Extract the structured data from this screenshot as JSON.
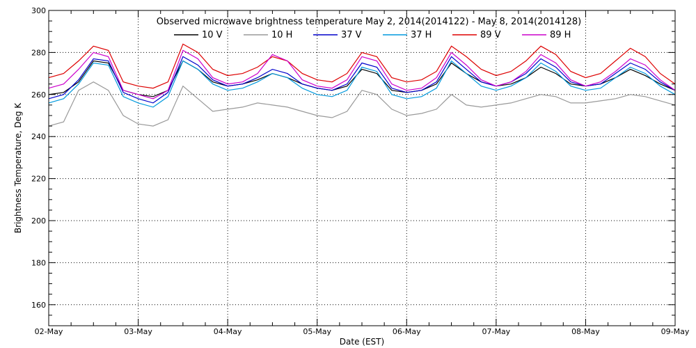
{
  "chart_data": {
    "type": "line",
    "title": "Observed microwave brightness temperature May  2, 2014(2014122) - May  8, 2014(2014128)",
    "xlabel": "Date (EST)",
    "ylabel": "Brightness Temperature, Deg K",
    "xlim": [
      "2014-05-02",
      "2014-05-09"
    ],
    "ylim": [
      150,
      300
    ],
    "yticks": [
      160,
      180,
      200,
      220,
      240,
      260,
      280,
      300
    ],
    "xticks": [
      "02-May",
      "03-May",
      "04-May",
      "05-May",
      "06-May",
      "07-May",
      "08-May",
      "09-May"
    ],
    "grid": true,
    "legend_position": "top",
    "x": [
      "2014-05-02T00:00",
      "2014-05-02T04:00",
      "2014-05-02T08:00",
      "2014-05-02T12:00",
      "2014-05-02T16:00",
      "2014-05-02T20:00",
      "2014-05-03T00:00",
      "2014-05-03T04:00",
      "2014-05-03T08:00",
      "2014-05-03T12:00",
      "2014-05-03T16:00",
      "2014-05-03T20:00",
      "2014-05-04T00:00",
      "2014-05-04T04:00",
      "2014-05-04T08:00",
      "2014-05-04T12:00",
      "2014-05-04T16:00",
      "2014-05-04T20:00",
      "2014-05-05T00:00",
      "2014-05-05T04:00",
      "2014-05-05T08:00",
      "2014-05-05T12:00",
      "2014-05-05T16:00",
      "2014-05-05T20:00",
      "2014-05-06T00:00",
      "2014-05-06T04:00",
      "2014-05-06T08:00",
      "2014-05-06T12:00",
      "2014-05-06T16:00",
      "2014-05-06T20:00",
      "2014-05-07T00:00",
      "2014-05-07T04:00",
      "2014-05-07T08:00",
      "2014-05-07T12:00",
      "2014-05-07T16:00",
      "2014-05-07T20:00",
      "2014-05-08T00:00",
      "2014-05-08T04:00",
      "2014-05-08T08:00",
      "2014-05-08T12:00",
      "2014-05-08T16:00",
      "2014-05-08T20:00",
      "2014-05-09T00:00"
    ],
    "series": [
      {
        "name": "10 V",
        "color": "#000000",
        "values": [
          260,
          261,
          266,
          276,
          275,
          262,
          260,
          259,
          262,
          276,
          272,
          266,
          264,
          265,
          267,
          270,
          268,
          265,
          263,
          262,
          264,
          272,
          270,
          262,
          261,
          262,
          265,
          275,
          270,
          266,
          264,
          265,
          268,
          273,
          270,
          265,
          264,
          265,
          268,
          272,
          269,
          265,
          262
        ]
      },
      {
        "name": "10 H",
        "color": "#999999",
        "values": [
          245,
          247,
          262,
          266,
          262,
          250,
          246,
          245,
          248,
          264,
          258,
          252,
          253,
          254,
          256,
          255,
          254,
          252,
          250,
          249,
          252,
          262,
          260,
          253,
          250,
          251,
          253,
          260,
          255,
          254,
          255,
          256,
          258,
          260,
          259,
          256,
          256,
          257,
          258,
          260,
          259,
          257,
          255
        ]
      },
      {
        "name": "37 V",
        "color": "#0000cc",
        "values": [
          258,
          260,
          267,
          277,
          276,
          261,
          258,
          256,
          261,
          278,
          274,
          267,
          264,
          265,
          268,
          272,
          270,
          265,
          263,
          262,
          265,
          275,
          273,
          263,
          261,
          262,
          266,
          278,
          272,
          266,
          264,
          266,
          270,
          277,
          273,
          266,
          264,
          265,
          270,
          275,
          272,
          266,
          262
        ]
      },
      {
        "name": "37 H",
        "color": "#0099dd",
        "values": [
          256,
          258,
          265,
          275,
          274,
          259,
          256,
          254,
          259,
          276,
          272,
          265,
          262,
          263,
          266,
          270,
          268,
          263,
          260,
          259,
          262,
          273,
          271,
          260,
          258,
          259,
          263,
          276,
          270,
          264,
          262,
          264,
          268,
          275,
          271,
          264,
          262,
          263,
          268,
          273,
          270,
          264,
          260
        ]
      },
      {
        "name": "89 V",
        "color": "#dd0000",
        "values": [
          268,
          270,
          276,
          283,
          281,
          266,
          264,
          263,
          266,
          284,
          280,
          272,
          269,
          270,
          273,
          278,
          276,
          270,
          267,
          266,
          270,
          280,
          278,
          268,
          266,
          267,
          271,
          283,
          278,
          272,
          269,
          271,
          276,
          283,
          279,
          271,
          268,
          270,
          276,
          282,
          278,
          270,
          265
        ]
      },
      {
        "name": "89 H",
        "color": "#cc00cc",
        "values": [
          263,
          265,
          272,
          280,
          278,
          262,
          260,
          258,
          262,
          281,
          277,
          268,
          265,
          266,
          270,
          279,
          276,
          267,
          264,
          263,
          267,
          278,
          276,
          265,
          262,
          263,
          268,
          280,
          274,
          267,
          264,
          266,
          271,
          279,
          275,
          267,
          264,
          266,
          271,
          277,
          274,
          267,
          262
        ]
      }
    ]
  }
}
